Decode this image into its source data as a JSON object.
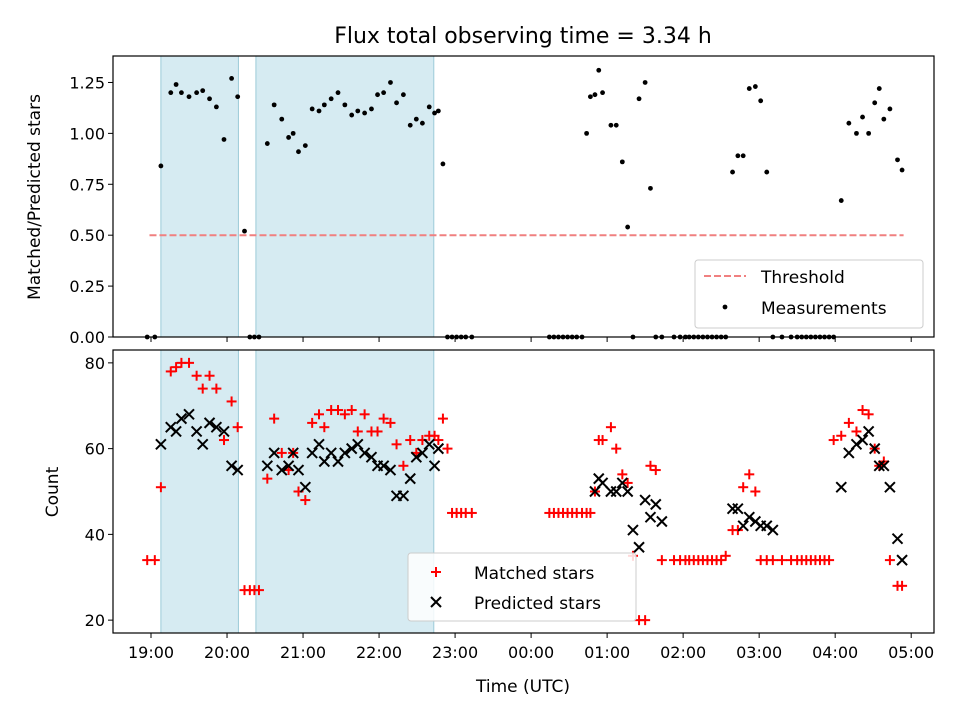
{
  "chart_data": [
    {
      "type": "scatter",
      "title": "Flux total observing time = 3.34 h",
      "xlabel": "",
      "ylabel": "Matched/Predicted stars",
      "xlim": [
        -0.5,
        10.3
      ],
      "ylim": [
        0,
        1.38
      ],
      "x_unit": "hours since 19:00 UTC",
      "yticks": [
        0.0,
        0.25,
        0.5,
        0.75,
        1.0,
        1.25
      ],
      "ytick_labels": [
        "0.00",
        "0.25",
        "0.50",
        "0.75",
        "1.00",
        "1.25"
      ],
      "shaded_intervals": [
        [
          0.13,
          1.15
        ],
        [
          1.38,
          3.72
        ]
      ],
      "threshold": {
        "name": "Threshold",
        "value": 0.5,
        "x_range": [
          -0.02,
          9.9
        ],
        "color": "#f08080"
      },
      "legend": {
        "placement": "lower-right",
        "entries": [
          "Threshold",
          "Measurements"
        ]
      },
      "series": [
        {
          "name": "Measurements",
          "color": "#000000",
          "marker": "dot",
          "x": [
            -0.05,
            0.05,
            0.13,
            0.26,
            0.33,
            0.4,
            0.5,
            0.6,
            0.68,
            0.77,
            0.86,
            0.96,
            1.06,
            1.14,
            1.23,
            1.3,
            1.36,
            1.42,
            1.53,
            1.62,
            1.72,
            1.81,
            1.87,
            1.94,
            2.03,
            2.12,
            2.21,
            2.28,
            2.37,
            2.46,
            2.55,
            2.64,
            2.72,
            2.81,
            2.9,
            2.98,
            3.06,
            3.15,
            3.23,
            3.32,
            3.41,
            3.49,
            3.57,
            3.66,
            3.73,
            3.78,
            3.84,
            3.9,
            3.96,
            4.02,
            4.08,
            4.14,
            4.22,
            5.24,
            5.3,
            5.36,
            5.42,
            5.48,
            5.54,
            5.6,
            5.67,
            5.73,
            5.78,
            5.84,
            5.89,
            5.94,
            6.05,
            6.12,
            6.2,
            6.27,
            6.34,
            6.42,
            6.5,
            6.57,
            6.64,
            6.72,
            6.88,
            6.96,
            7.03,
            7.08,
            7.14,
            7.2,
            7.26,
            7.32,
            7.38,
            7.44,
            7.5,
            7.56,
            7.65,
            7.72,
            7.79,
            7.87,
            7.95,
            8.02,
            8.1,
            8.18,
            8.3,
            8.42,
            8.5,
            8.56,
            8.62,
            8.68,
            8.74,
            8.8,
            8.86,
            8.92,
            8.98,
            9.08,
            9.18,
            9.28,
            9.36,
            9.44,
            9.52,
            9.58,
            9.64,
            9.72,
            9.82,
            9.88
          ],
          "y": [
            0.0,
            0.0,
            0.84,
            1.2,
            1.24,
            1.2,
            1.18,
            1.2,
            1.21,
            1.17,
            1.13,
            0.97,
            1.27,
            1.18,
            0.52,
            0.0,
            0.0,
            0.0,
            0.95,
            1.14,
            1.07,
            0.98,
            1.0,
            0.91,
            0.94,
            1.12,
            1.11,
            1.14,
            1.17,
            1.2,
            1.14,
            1.09,
            1.11,
            1.1,
            1.12,
            1.19,
            1.2,
            1.25,
            1.15,
            1.19,
            1.04,
            1.07,
            1.05,
            1.13,
            1.1,
            1.11,
            0.85,
            0.0,
            0.0,
            0.0,
            0.0,
            0.0,
            0.0,
            0.0,
            0.0,
            0.0,
            0.0,
            0.0,
            0.0,
            0.0,
            0.0,
            1.0,
            1.18,
            1.19,
            1.31,
            1.2,
            1.04,
            1.04,
            0.86,
            0.54,
            0.0,
            1.17,
            1.25,
            0.73,
            0.0,
            0.0,
            0.0,
            0.0,
            0.0,
            0.0,
            0.0,
            0.0,
            0.0,
            0.0,
            0.0,
            0.0,
            0.0,
            0.0,
            0.81,
            0.89,
            0.89,
            1.22,
            1.23,
            1.16,
            0.81,
            0.0,
            0.0,
            0.0,
            0.0,
            0.0,
            0.0,
            0.0,
            0.0,
            0.0,
            0.0,
            0.0,
            0.0,
            0.67,
            1.05,
            1.0,
            1.08,
            1.0,
            1.15,
            1.22,
            1.07,
            1.12,
            0.87,
            0.82
          ]
        }
      ]
    },
    {
      "type": "scatter",
      "title": "",
      "xlabel": "Time (UTC)",
      "ylabel": "Count",
      "xlim": [
        -0.5,
        10.3
      ],
      "ylim": [
        17,
        83
      ],
      "x_unit": "hours since 19:00 UTC",
      "xticks": [
        0,
        1,
        2,
        3,
        4,
        5,
        6,
        7,
        8,
        9,
        10
      ],
      "xtick_labels": [
        "19:00",
        "20:00",
        "21:00",
        "22:00",
        "23:00",
        "00:00",
        "01:00",
        "02:00",
        "03:00",
        "04:00",
        "05:00"
      ],
      "yticks": [
        20,
        40,
        60,
        80
      ],
      "ytick_labels": [
        "20",
        "40",
        "60",
        "80"
      ],
      "shaded_intervals": [
        [
          0.13,
          1.15
        ],
        [
          1.38,
          3.72
        ]
      ],
      "legend": {
        "placement": "bottom-center",
        "entries": [
          "Matched stars",
          "Predicted stars"
        ]
      },
      "series": [
        {
          "name": "Matched stars",
          "color": "#ff0000",
          "marker": "plus",
          "x": [
            -0.05,
            0.05,
            0.13,
            0.26,
            0.33,
            0.4,
            0.5,
            0.6,
            0.68,
            0.77,
            0.86,
            0.96,
            1.06,
            1.14,
            1.23,
            1.3,
            1.36,
            1.42,
            1.53,
            1.62,
            1.72,
            1.81,
            1.87,
            1.94,
            2.03,
            2.12,
            2.21,
            2.28,
            2.37,
            2.46,
            2.55,
            2.64,
            2.72,
            2.81,
            2.9,
            2.98,
            3.06,
            3.15,
            3.23,
            3.32,
            3.41,
            3.49,
            3.57,
            3.66,
            3.73,
            3.78,
            3.84,
            3.9,
            3.96,
            4.02,
            4.08,
            4.14,
            4.22,
            5.24,
            5.3,
            5.36,
            5.42,
            5.48,
            5.54,
            5.6,
            5.67,
            5.73,
            5.78,
            5.84,
            5.89,
            5.94,
            6.05,
            6.12,
            6.2,
            6.27,
            6.34,
            6.42,
            6.5,
            6.57,
            6.64,
            6.72,
            6.88,
            6.96,
            7.03,
            7.08,
            7.14,
            7.2,
            7.26,
            7.32,
            7.38,
            7.44,
            7.5,
            7.56,
            7.65,
            7.72,
            7.79,
            7.87,
            7.95,
            8.02,
            8.1,
            8.18,
            8.3,
            8.42,
            8.5,
            8.56,
            8.62,
            8.68,
            8.74,
            8.8,
            8.86,
            8.92,
            8.98,
            9.08,
            9.18,
            9.28,
            9.36,
            9.44,
            9.52,
            9.58,
            9.64,
            9.72,
            9.82,
            9.88
          ],
          "y": [
            34,
            34,
            51,
            78,
            79,
            80,
            80,
            77,
            74,
            77,
            74,
            62,
            71,
            65,
            27,
            27,
            27,
            27,
            53,
            67,
            59,
            55,
            59,
            50,
            48,
            66,
            68,
            65,
            69,
            69,
            68,
            69,
            64,
            68,
            64,
            64,
            67,
            66,
            61,
            56,
            62,
            59,
            62,
            63,
            63,
            62,
            67,
            60,
            45,
            45,
            45,
            45,
            45,
            45,
            45,
            45,
            45,
            45,
            45,
            45,
            45,
            45,
            45,
            50,
            62,
            62,
            65,
            60,
            54,
            52,
            35,
            20,
            20,
            56,
            55,
            34,
            34,
            34,
            34,
            34,
            34,
            34,
            34,
            34,
            34,
            34,
            34,
            35,
            41,
            41,
            51,
            54,
            50,
            34,
            34,
            34,
            34,
            34,
            34,
            34,
            34,
            34,
            34,
            34,
            34,
            34,
            62,
            63,
            66,
            64,
            69,
            68,
            60,
            56,
            57,
            34,
            28,
            28
          ]
        },
        {
          "name": "Predicted stars",
          "color": "#000000",
          "marker": "x",
          "x": [
            0.13,
            0.26,
            0.33,
            0.4,
            0.5,
            0.6,
            0.68,
            0.77,
            0.86,
            0.96,
            1.06,
            1.14,
            1.53,
            1.62,
            1.72,
            1.81,
            1.87,
            1.94,
            2.03,
            2.12,
            2.21,
            2.28,
            2.37,
            2.46,
            2.55,
            2.64,
            2.72,
            2.81,
            2.9,
            2.98,
            3.06,
            3.15,
            3.23,
            3.32,
            3.41,
            3.49,
            3.57,
            3.66,
            3.73,
            3.78,
            5.84,
            5.89,
            5.94,
            6.05,
            6.12,
            6.2,
            6.27,
            6.34,
            6.42,
            6.5,
            6.57,
            6.64,
            6.72,
            7.65,
            7.72,
            7.79,
            7.87,
            7.95,
            8.02,
            8.1,
            8.18,
            9.08,
            9.18,
            9.28,
            9.36,
            9.44,
            9.52,
            9.58,
            9.64,
            9.72,
            9.82,
            9.88
          ],
          "y": [
            61,
            65,
            64,
            67,
            68,
            64,
            61,
            66,
            65,
            64,
            56,
            55,
            56,
            59,
            55,
            56,
            59,
            55,
            51,
            59,
            61,
            57,
            59,
            57,
            59,
            60,
            61,
            59,
            58,
            56,
            56,
            55,
            49,
            49,
            53,
            58,
            59,
            61,
            56,
            60,
            50,
            53,
            52,
            50,
            50,
            52,
            50,
            41,
            37,
            48,
            44,
            47,
            43,
            46,
            46,
            42,
            44,
            43,
            42,
            42,
            41,
            51,
            59,
            61,
            62,
            64,
            60,
            56,
            56,
            51,
            39,
            34
          ]
        }
      ]
    }
  ]
}
